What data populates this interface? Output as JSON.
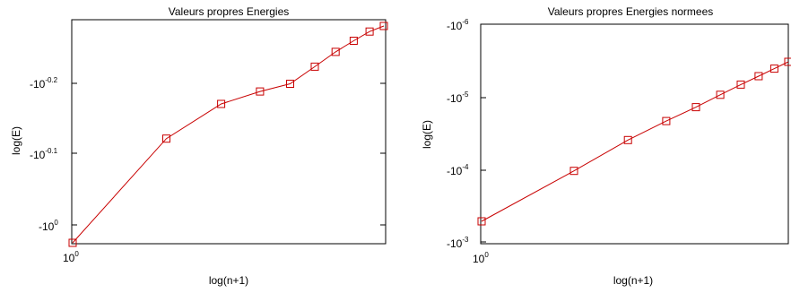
{
  "chart_data": [
    {
      "type": "line",
      "title": "Valeurs propres Energies",
      "xlabel": "log(n+1)",
      "ylabel": "log(E)",
      "x_scale": "log",
      "y_scale": "log",
      "xlim": [
        1,
        10
      ],
      "x_tick_labels": [
        {
          "base": "10",
          "exp": "0"
        }
      ],
      "y_tick_labels": [
        {
          "base": "-10",
          "exp": "-0.2"
        },
        {
          "base": "-10",
          "exp": "-0.1"
        },
        {
          "base": "-10",
          "exp": "0"
        }
      ],
      "grid": false,
      "marker": "square",
      "line_color": "#c80000",
      "series": [
        {
          "x": [
            1,
            2,
            3,
            4,
            5,
            6,
            7,
            8,
            9,
            10
          ],
          "y": [
            -1.06,
            -0.76,
            -0.679,
            -0.65,
            -0.632,
            -0.622,
            -0.614,
            -0.608,
            -0.603,
            -0.6
          ]
        }
      ]
    },
    {
      "type": "line",
      "title": "Valeurs propres Energies normees",
      "xlabel": "log(n+1)",
      "ylabel": "log(E)",
      "x_scale": "log",
      "y_scale": "log",
      "xlim": [
        1,
        10
      ],
      "x_tick_labels": [
        {
          "base": "10",
          "exp": "0"
        }
      ],
      "y_tick_labels": [
        {
          "base": "-10",
          "exp": "-6"
        },
        {
          "base": "-10",
          "exp": "-5"
        },
        {
          "base": "-10",
          "exp": "-4"
        },
        {
          "base": "-10",
          "exp": "-3"
        }
      ],
      "grid": false,
      "marker": "square",
      "line_color": "#c80000",
      "series": [
        {
          "x": [
            1,
            2,
            3,
            4,
            5,
            6,
            7,
            8,
            9,
            10
          ],
          "y": [
            -0.00052,
            -0.000105,
            -3.95e-05,
            -2.16e-05,
            -1.39e-05,
            -9.4e-06,
            -6.8e-06,
            -5.2e-06,
            -4.1e-06,
            -3.3e-06
          ]
        }
      ]
    }
  ]
}
